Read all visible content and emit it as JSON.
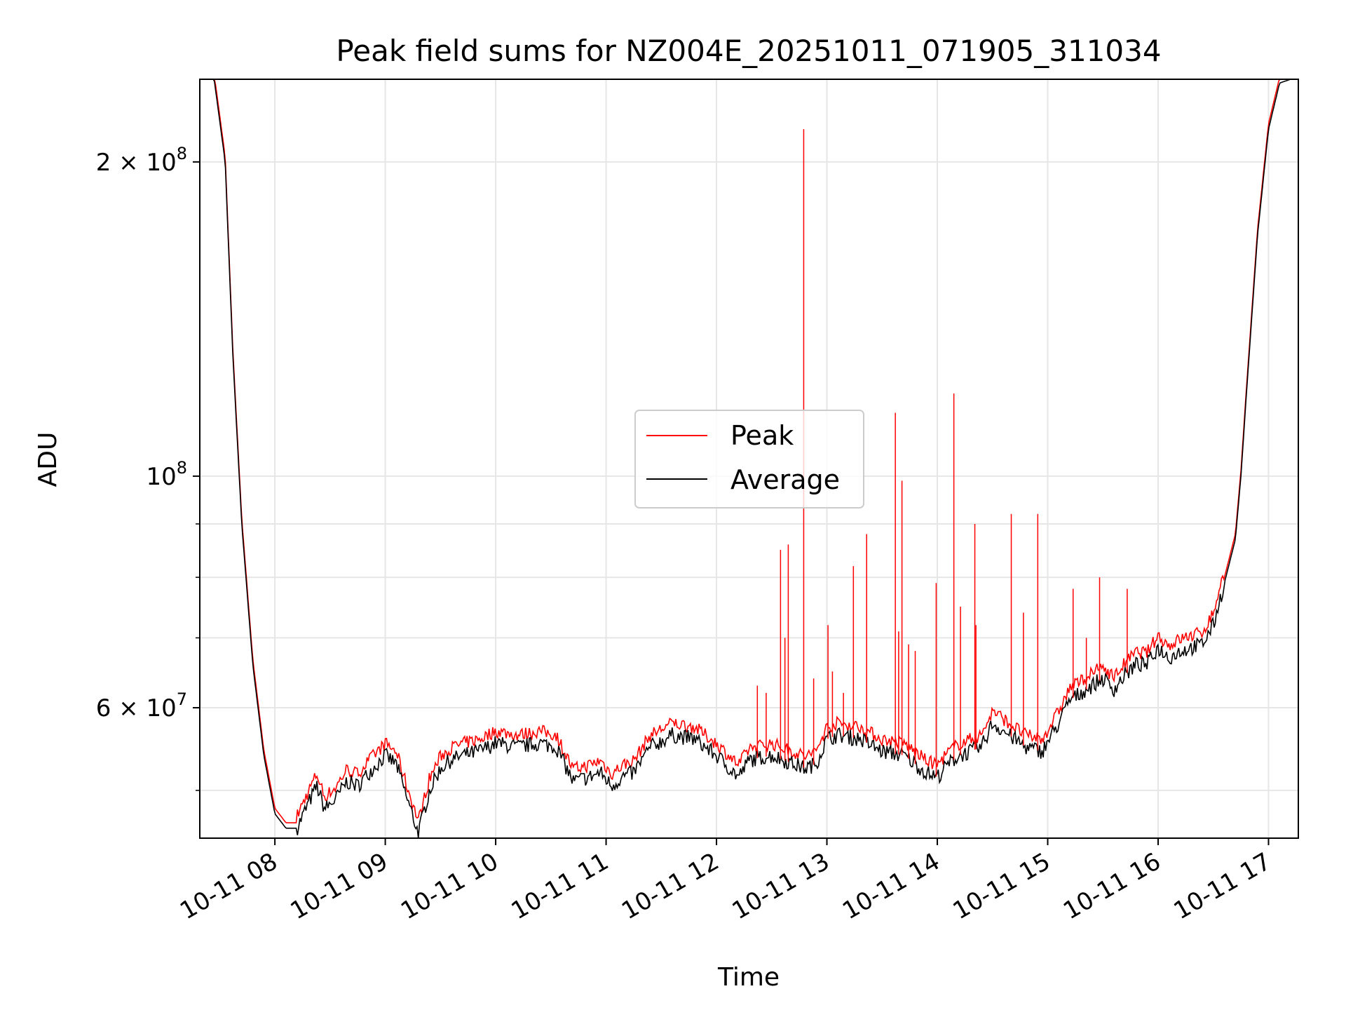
{
  "chart_data": {
    "type": "line",
    "title": "Peak field sums for NZ004E_20251011_071905_311034",
    "xlabel": "Time",
    "ylabel": "ADU",
    "x_ticks": [
      "10-11 08",
      "10-11 09",
      "10-11 10",
      "10-11 11",
      "10-11 12",
      "10-11 13",
      "10-11 14",
      "10-11 15",
      "10-11 16",
      "10-11 17"
    ],
    "y_scale": "log",
    "y_ticks": [
      {
        "value": 100000000,
        "mantissa": "",
        "exp": "8"
      },
      {
        "value": 200000000,
        "mantissa": "2",
        "exp": "8"
      },
      {
        "value": 60000000,
        "mantissa": "6",
        "exp": "7"
      }
    ],
    "y_minor_ticks": [
      50000000,
      70000000,
      80000000,
      90000000
    ],
    "xlim_hours": [
      7.32,
      17.27
    ],
    "ylim": [
      45000000,
      240000000
    ],
    "grid": true,
    "legend": {
      "placement": "center",
      "entries": [
        "Peak",
        "Average"
      ]
    },
    "colors": {
      "Peak": "#ff0000",
      "Average": "#000000"
    },
    "x_unit": "hours of 2025-10-11",
    "series": [
      {
        "name": "Average",
        "x": [
          7.32,
          7.45,
          7.55,
          7.62,
          7.7,
          7.8,
          7.9,
          8.0,
          8.1,
          8.2,
          8.3,
          8.38,
          8.45,
          8.55,
          8.65,
          8.75,
          8.85,
          9.0,
          9.1,
          9.2,
          9.3,
          9.4,
          9.5,
          9.6,
          9.7,
          9.85,
          10.0,
          10.2,
          10.4,
          10.55,
          10.7,
          10.85,
          10.95,
          11.05,
          11.15,
          11.25,
          11.4,
          11.6,
          11.8,
          12.0,
          12.2,
          12.3,
          12.5,
          12.7,
          12.8,
          12.9,
          13.0,
          13.1,
          13.3,
          13.5,
          13.7,
          13.9,
          14.0,
          14.1,
          14.2,
          14.4,
          14.5,
          14.6,
          14.8,
          14.95,
          15.1,
          15.2,
          15.4,
          15.5,
          15.6,
          15.7,
          15.8,
          15.9,
          16.0,
          16.1,
          16.2,
          16.4,
          16.5,
          16.6,
          16.7,
          16.75,
          16.8,
          16.9,
          17.0,
          17.1,
          17.2,
          17.27
        ],
        "y": [
          240000000,
          240000000,
          200000000,
          130000000,
          90000000,
          66000000,
          54000000,
          47500000,
          46000000,
          46000000,
          48500000,
          50500000,
          48000000,
          49000000,
          51000000,
          50500000,
          52000000,
          54000000,
          53000000,
          49000000,
          45500000,
          50000000,
          52500000,
          53500000,
          54000000,
          54500000,
          55500000,
          55000000,
          55500000,
          55000000,
          51000000,
          51500000,
          52000000,
          50500000,
          51500000,
          52000000,
          55000000,
          56500000,
          56000000,
          54000000,
          51500000,
          53500000,
          54000000,
          53000000,
          52500000,
          53000000,
          56000000,
          56500000,
          56000000,
          54500000,
          54000000,
          52000000,
          51500000,
          53000000,
          54000000,
          55000000,
          58000000,
          57000000,
          55000000,
          54500000,
          58000000,
          61000000,
          63000000,
          64000000,
          62500000,
          64500000,
          66000000,
          66000000,
          68500000,
          67000000,
          68000000,
          69000000,
          72000000,
          79000000,
          87000000,
          100000000,
          120000000,
          170000000,
          215000000,
          238000000,
          240000000,
          240000000
        ]
      },
      {
        "name": "Peak",
        "spikes": [
          {
            "x": 12.37,
            "y": 63000000
          },
          {
            "x": 12.45,
            "y": 62000000
          },
          {
            "x": 12.58,
            "y": 85000000
          },
          {
            "x": 12.62,
            "y": 70000000
          },
          {
            "x": 12.65,
            "y": 86000000
          },
          {
            "x": 12.79,
            "y": 215000000
          },
          {
            "x": 12.88,
            "y": 64000000
          },
          {
            "x": 13.01,
            "y": 72000000
          },
          {
            "x": 13.05,
            "y": 65000000
          },
          {
            "x": 13.15,
            "y": 62000000
          },
          {
            "x": 13.24,
            "y": 82000000
          },
          {
            "x": 13.36,
            "y": 88000000
          },
          {
            "x": 13.62,
            "y": 115000000
          },
          {
            "x": 13.65,
            "y": 71000000
          },
          {
            "x": 13.68,
            "y": 99000000
          },
          {
            "x": 13.74,
            "y": 69000000
          },
          {
            "x": 13.8,
            "y": 68000000
          },
          {
            "x": 13.99,
            "y": 79000000
          },
          {
            "x": 14.15,
            "y": 120000000
          },
          {
            "x": 14.21,
            "y": 75000000
          },
          {
            "x": 14.34,
            "y": 90000000
          },
          {
            "x": 14.35,
            "y": 72000000
          },
          {
            "x": 14.67,
            "y": 92000000
          },
          {
            "x": 14.78,
            "y": 74000000
          },
          {
            "x": 14.91,
            "y": 92000000
          },
          {
            "x": 15.23,
            "y": 78000000
          },
          {
            "x": 15.35,
            "y": 70000000
          },
          {
            "x": 15.47,
            "y": 80000000
          },
          {
            "x": 15.72,
            "y": 78000000
          }
        ]
      }
    ]
  }
}
